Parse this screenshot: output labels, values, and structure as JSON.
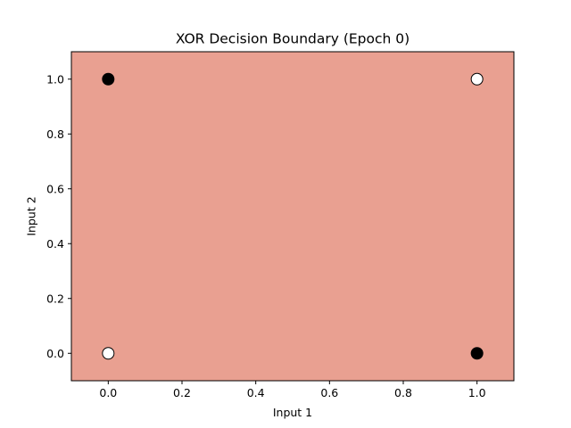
{
  "chart_data": {
    "type": "scatter",
    "title": "XOR Decision Boundary (Epoch 0)",
    "xlabel": "Input 1",
    "ylabel": "Input 2",
    "xlim": [
      -0.1,
      1.1
    ],
    "ylim": [
      -0.1,
      1.1
    ],
    "x_ticks": [
      0.0,
      0.2,
      0.4,
      0.6,
      0.8,
      1.0
    ],
    "x_tick_labels": [
      "0.0",
      "0.2",
      "0.4",
      "0.6",
      "0.8",
      "1.0"
    ],
    "y_ticks": [
      0.0,
      0.2,
      0.4,
      0.6,
      0.8,
      1.0
    ],
    "y_tick_labels": [
      "0.0",
      "0.2",
      "0.4",
      "0.6",
      "0.8",
      "1.0"
    ],
    "background_region_color": "#e9a091",
    "grid": false,
    "points": [
      {
        "x": 0,
        "y": 0,
        "class": 0,
        "color": "#ffffff"
      },
      {
        "x": 0,
        "y": 1,
        "class": 1,
        "color": "#000000"
      },
      {
        "x": 1,
        "y": 0,
        "class": 1,
        "color": "#000000"
      },
      {
        "x": 1,
        "y": 1,
        "class": 0,
        "color": "#ffffff"
      }
    ]
  }
}
